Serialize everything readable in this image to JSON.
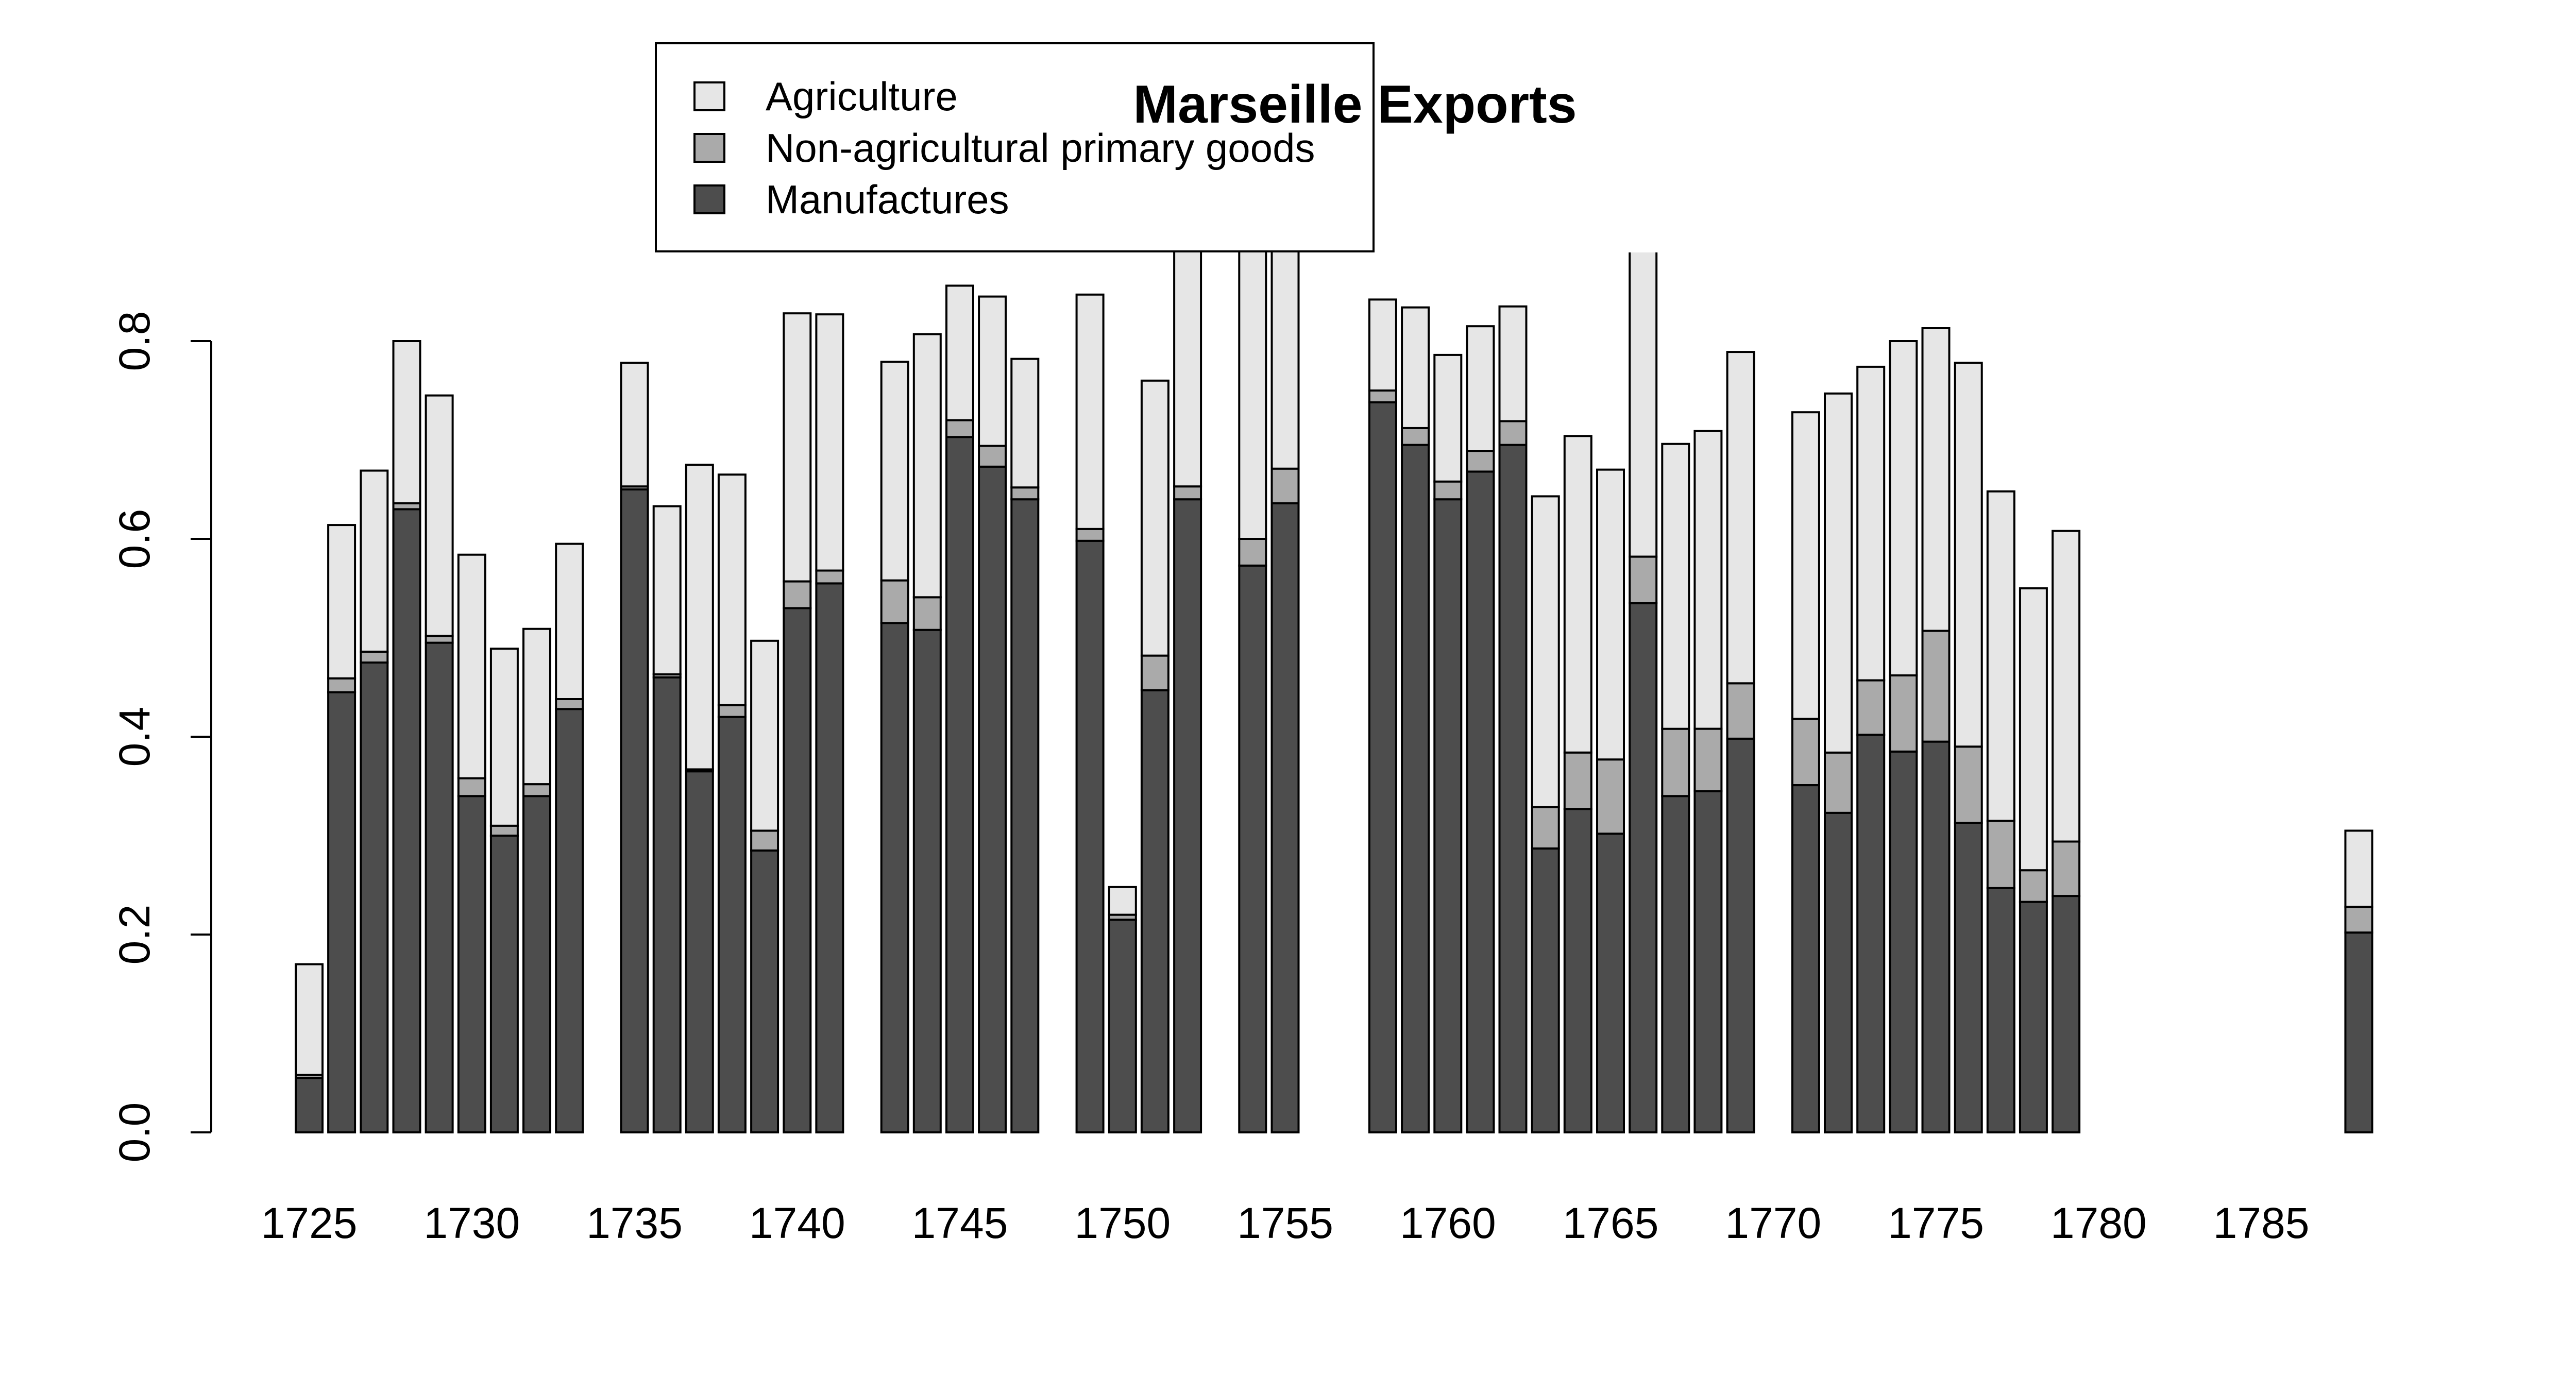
{
  "chart_data": {
    "type": "bar",
    "stacked": true,
    "title": "Marseille Exports",
    "xlabel": "",
    "ylabel": "",
    "ylim": [
      0,
      0.9
    ],
    "xlim": [
      1725,
      1789
    ],
    "yticks": [
      0.0,
      0.2,
      0.4,
      0.6,
      0.8
    ],
    "ytick_labels": [
      "0.0",
      "0.2",
      "0.4",
      "0.6",
      "0.8"
    ],
    "xticks": [
      1725,
      1730,
      1735,
      1740,
      1745,
      1750,
      1755,
      1760,
      1765,
      1770,
      1775,
      1780,
      1785
    ],
    "xtick_labels": [
      "1725",
      "1730",
      "1735",
      "1740",
      "1745",
      "1750",
      "1755",
      "1760",
      "1765",
      "1770",
      "1775",
      "1780",
      "1785"
    ],
    "grid": false,
    "legend_position": "top-left",
    "series_colors": [
      "#4d4d4d",
      "#aaaaaa",
      "#e6e6e6"
    ],
    "series": [
      {
        "name": "Manufactures",
        "values": [
          0.055,
          0.445,
          0.475,
          0.63,
          0.495,
          0.34,
          0.3,
          0.34,
          0.428,
          0.65,
          0.46,
          0.365,
          0.42,
          0.285,
          0.53,
          0.555,
          0.515,
          0.508,
          0.703,
          0.673,
          0.64,
          0.598,
          0.215,
          0.447,
          0.64,
          0.573,
          0.636,
          0.738,
          0.695,
          0.64,
          0.668,
          0.695,
          0.287,
          0.327,
          0.302,
          0.535,
          0.34,
          0.345,
          0.398,
          0.351,
          0.323,
          0.402,
          0.385,
          0.395,
          0.313,
          0.247,
          0.233,
          0.239,
          0.202
        ]
      },
      {
        "name": "Non-agricultural primary goods",
        "values": [
          0.003,
          0.014,
          0.011,
          0.006,
          0.007,
          0.018,
          0.01,
          0.012,
          0.01,
          0.003,
          0.003,
          0.002,
          0.012,
          0.02,
          0.027,
          0.013,
          0.043,
          0.033,
          0.017,
          0.021,
          0.012,
          0.012,
          0.005,
          0.035,
          0.013,
          0.027,
          0.035,
          0.012,
          0.017,
          0.018,
          0.021,
          0.024,
          0.042,
          0.057,
          0.075,
          0.047,
          0.068,
          0.063,
          0.056,
          0.067,
          0.061,
          0.055,
          0.077,
          0.112,
          0.077,
          0.068,
          0.032,
          0.055,
          0.026
        ]
      },
      {
        "name": "Agriculture",
        "values": [
          0.112,
          0.155,
          0.183,
          0.164,
          0.243,
          0.226,
          0.179,
          0.157,
          0.157,
          0.125,
          0.17,
          0.308,
          0.233,
          0.192,
          0.271,
          0.259,
          0.221,
          0.266,
          0.136,
          0.151,
          0.13,
          0.237,
          0.028,
          0.278,
          0.267,
          0.32,
          0.239,
          0.092,
          0.122,
          0.128,
          0.126,
          0.116,
          0.314,
          0.32,
          0.293,
          0.352,
          0.288,
          0.301,
          0.335,
          0.31,
          0.363,
          0.317,
          0.338,
          0.306,
          0.388,
          0.333,
          0.285,
          0.314,
          0.077
        ]
      }
    ],
    "x": [
      1725,
      1726,
      1727,
      1728,
      1729,
      1730,
      1731,
      1732,
      1733,
      1735,
      1736,
      1737,
      1738,
      1739,
      1740,
      1741,
      1743,
      1744,
      1745,
      1746,
      1747,
      1749,
      1750,
      1751,
      1752,
      1754,
      1755,
      1758,
      1759,
      1760,
      1761,
      1762,
      1763,
      1764,
      1765,
      1766,
      1767,
      1768,
      1769,
      1771,
      1772,
      1773,
      1774,
      1775,
      1776,
      1777,
      1778,
      1779,
      1788
    ]
  }
}
